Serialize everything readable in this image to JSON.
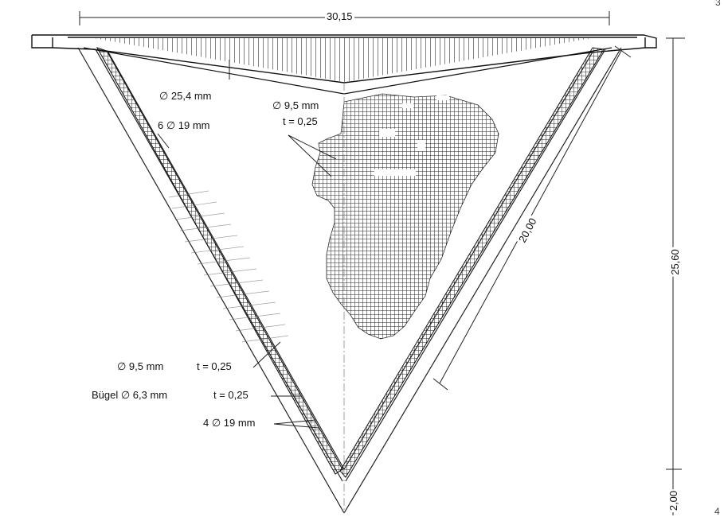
{
  "dimensions": {
    "top_width": "30,15",
    "side_length": "20,00",
    "height": "25,60",
    "base_height": "2,00"
  },
  "labels": {
    "tendon_diameter": "∅  25,4 mm",
    "top_bars": "6 ∅ 19 mm",
    "mesh_bar": "∅ 9,5 mm",
    "mesh_spacing": "t = 0,25",
    "side_bar": "∅ 9,5 mm",
    "side_spacing": "t = 0,25",
    "stirrup": "Bügel ∅ 6,3 mm",
    "stirrup_spacing": "t = 0,25",
    "bottom_bars": "4 ∅ 19 mm"
  },
  "page_marks": {
    "top_right": "3",
    "bottom_right": "4"
  }
}
